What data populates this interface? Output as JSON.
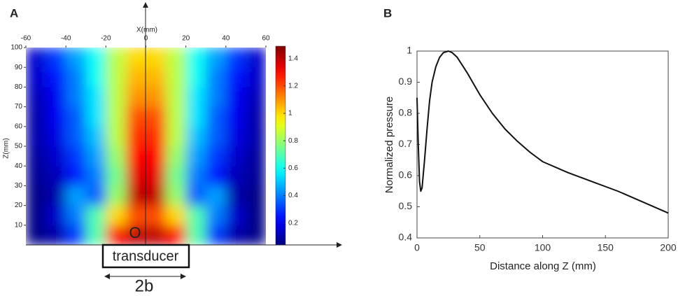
{
  "chart_data": [
    {
      "type": "heatmap",
      "panel_label": "A",
      "x_label": "X(mm)",
      "y_label": "Z(mm)",
      "x": [
        -55,
        -45,
        -35,
        -25,
        -15,
        -5,
        5,
        15,
        25,
        35,
        45,
        55
      ],
      "y": [
        5,
        15,
        25,
        35,
        45,
        55,
        65,
        75,
        85,
        95
      ],
      "values": [
        [
          0.05,
          0.1,
          0.3,
          0.7,
          1.3,
          1.4,
          1.4,
          1.3,
          0.7,
          0.3,
          0.1,
          0.05
        ],
        [
          0.05,
          0.15,
          0.4,
          0.7,
          1.0,
          1.2,
          1.2,
          1.0,
          0.7,
          0.4,
          0.15,
          0.05
        ],
        [
          0.05,
          0.1,
          0.45,
          0.35,
          0.8,
          1.4,
          1.4,
          0.8,
          0.35,
          0.45,
          0.1,
          0.05
        ],
        [
          0.07,
          0.12,
          0.25,
          0.4,
          0.75,
          1.35,
          1.35,
          0.75,
          0.4,
          0.25,
          0.12,
          0.07
        ],
        [
          0.08,
          0.15,
          0.3,
          0.45,
          0.8,
          1.3,
          1.3,
          0.8,
          0.45,
          0.3,
          0.15,
          0.08
        ],
        [
          0.1,
          0.18,
          0.35,
          0.5,
          0.85,
          1.25,
          1.25,
          0.85,
          0.5,
          0.35,
          0.18,
          0.1
        ],
        [
          0.1,
          0.2,
          0.35,
          0.55,
          0.85,
          1.2,
          1.2,
          0.85,
          0.55,
          0.35,
          0.2,
          0.1
        ],
        [
          0.12,
          0.2,
          0.4,
          0.55,
          0.85,
          1.1,
          1.1,
          0.85,
          0.55,
          0.4,
          0.2,
          0.12
        ],
        [
          0.15,
          0.25,
          0.4,
          0.6,
          0.85,
          1.05,
          1.05,
          0.85,
          0.6,
          0.4,
          0.25,
          0.15
        ],
        [
          0.15,
          0.3,
          0.45,
          0.6,
          0.85,
          1.0,
          1.0,
          0.85,
          0.6,
          0.45,
          0.3,
          0.15
        ]
      ],
      "xlim": [
        -60,
        60
      ],
      "xticks": [
        -60,
        -40,
        -20,
        0,
        20,
        40,
        60
      ],
      "ylim": [
        0,
        100
      ],
      "yticks": [
        10,
        20,
        30,
        40,
        50,
        60,
        70,
        80,
        90,
        100
      ],
      "colormap": "jet",
      "clim": [
        0.04,
        1.49
      ],
      "cticks": [
        0.2,
        0.4,
        0.6,
        0.8,
        1,
        1.2,
        1.4
      ],
      "annotations": [
        "O",
        "transducer",
        "2b"
      ]
    },
    {
      "type": "line",
      "panel_label": "B",
      "x_label": "Distance along Z (mm)",
      "y_label": "Normalized pressure",
      "color": "#111111",
      "x": [
        0,
        1,
        2,
        3,
        4,
        6,
        8,
        10,
        12,
        15,
        18,
        21,
        25,
        28,
        32,
        40,
        50,
        60,
        70,
        80,
        90,
        100,
        120,
        140,
        160,
        180,
        200
      ],
      "values": [
        0.85,
        0.7,
        0.58,
        0.55,
        0.56,
        0.65,
        0.75,
        0.84,
        0.9,
        0.95,
        0.98,
        0.995,
        1.0,
        0.995,
        0.98,
        0.93,
        0.86,
        0.8,
        0.75,
        0.71,
        0.675,
        0.645,
        0.61,
        0.58,
        0.55,
        0.515,
        0.48
      ],
      "xlim": [
        0,
        200
      ],
      "xticks": [
        0,
        50,
        100,
        150,
        200
      ],
      "ylim": [
        0.4,
        1.0
      ],
      "yticks": [
        0.4,
        0.5,
        0.6,
        0.7,
        0.8,
        0.9,
        1
      ]
    }
  ]
}
